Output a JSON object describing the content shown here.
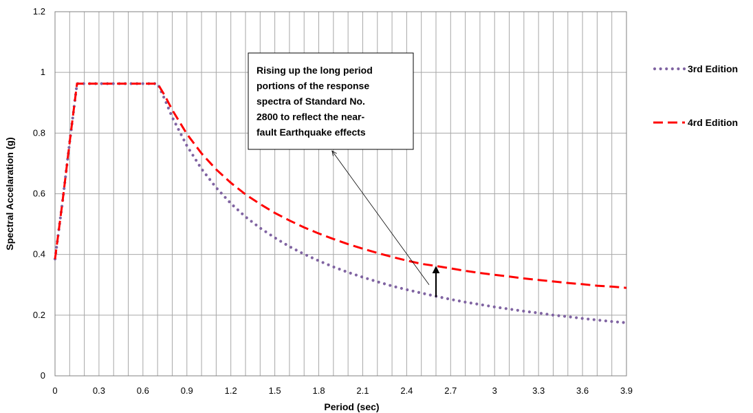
{
  "chart_data": {
    "type": "line",
    "title": "",
    "xlabel": "Period (sec)",
    "ylabel": "Spectral Accelaration (g)",
    "xlim": [
      0,
      3.9
    ],
    "ylim": [
      0,
      1.2
    ],
    "grid": true,
    "legend_position": "right",
    "x_ticks": [
      "0",
      "0.3",
      "0.6",
      "0.9",
      "1.2",
      "1.5",
      "1.8",
      "2.1",
      "2.4",
      "2.7",
      "3",
      "3.3",
      "3.6",
      "3.9"
    ],
    "y_ticks": [
      "0",
      "0.2",
      "0.4",
      "0.6",
      "0.8",
      "1",
      "1.2"
    ],
    "series": [
      {
        "name": "3rd Edition",
        "style": "dotted",
        "color": "#8064a2",
        "points": [
          [
            0,
            0.385
          ],
          [
            0.05,
            0.57
          ],
          [
            0.1,
            0.77
          ],
          [
            0.15,
            0.963
          ],
          [
            0.2,
            0.963
          ],
          [
            0.3,
            0.963
          ],
          [
            0.4,
            0.963
          ],
          [
            0.5,
            0.963
          ],
          [
            0.6,
            0.963
          ],
          [
            0.7,
            0.963
          ],
          [
            0.75,
            0.91
          ],
          [
            0.8,
            0.852
          ],
          [
            0.9,
            0.758
          ],
          [
            1.0,
            0.682
          ],
          [
            1.1,
            0.62
          ],
          [
            1.2,
            0.568
          ],
          [
            1.3,
            0.524
          ],
          [
            1.4,
            0.487
          ],
          [
            1.5,
            0.455
          ],
          [
            1.6,
            0.426
          ],
          [
            1.7,
            0.401
          ],
          [
            1.8,
            0.379
          ],
          [
            1.9,
            0.359
          ],
          [
            2.0,
            0.341
          ],
          [
            2.1,
            0.325
          ],
          [
            2.2,
            0.31
          ],
          [
            2.3,
            0.296
          ],
          [
            2.4,
            0.284
          ],
          [
            2.5,
            0.273
          ],
          [
            2.6,
            0.262
          ],
          [
            2.7,
            0.252
          ],
          [
            2.8,
            0.243
          ],
          [
            2.9,
            0.235
          ],
          [
            3.0,
            0.227
          ],
          [
            3.1,
            0.22
          ],
          [
            3.2,
            0.213
          ],
          [
            3.3,
            0.207
          ],
          [
            3.4,
            0.2
          ],
          [
            3.5,
            0.195
          ],
          [
            3.6,
            0.189
          ],
          [
            3.7,
            0.184
          ],
          [
            3.8,
            0.179
          ],
          [
            3.9,
            0.175
          ]
        ]
      },
      {
        "name": "4rd Edition",
        "style": "dashed",
        "color": "#ff0000",
        "points": [
          [
            0,
            0.385
          ],
          [
            0.05,
            0.57
          ],
          [
            0.1,
            0.77
          ],
          [
            0.15,
            0.963
          ],
          [
            0.2,
            0.963
          ],
          [
            0.3,
            0.963
          ],
          [
            0.4,
            0.963
          ],
          [
            0.5,
            0.963
          ],
          [
            0.6,
            0.963
          ],
          [
            0.7,
            0.963
          ],
          [
            0.75,
            0.923
          ],
          [
            0.8,
            0.876
          ],
          [
            0.9,
            0.797
          ],
          [
            1.0,
            0.733
          ],
          [
            1.1,
            0.68
          ],
          [
            1.2,
            0.636
          ],
          [
            1.3,
            0.598
          ],
          [
            1.4,
            0.566
          ],
          [
            1.5,
            0.537
          ],
          [
            1.6,
            0.512
          ],
          [
            1.7,
            0.489
          ],
          [
            1.8,
            0.469
          ],
          [
            1.9,
            0.451
          ],
          [
            2.0,
            0.434
          ],
          [
            2.1,
            0.419
          ],
          [
            2.2,
            0.405
          ],
          [
            2.3,
            0.392
          ],
          [
            2.4,
            0.38
          ],
          [
            2.5,
            0.369
          ],
          [
            2.6,
            0.362
          ],
          [
            2.7,
            0.354
          ],
          [
            2.8,
            0.346
          ],
          [
            2.9,
            0.339
          ],
          [
            3.0,
            0.333
          ],
          [
            3.1,
            0.327
          ],
          [
            3.2,
            0.321
          ],
          [
            3.3,
            0.316
          ],
          [
            3.4,
            0.311
          ],
          [
            3.5,
            0.306
          ],
          [
            3.6,
            0.302
          ],
          [
            3.7,
            0.297
          ],
          [
            3.8,
            0.294
          ],
          [
            3.9,
            0.29
          ]
        ]
      }
    ],
    "annotation": {
      "text_lines": [
        "Rising up the long period",
        "portions of the response",
        "spectra of Standard No.",
        "2800 to reflect the near-",
        "fault Earthquake effects"
      ],
      "vertical_arrow": {
        "x": 2.6,
        "y_from": 0.262,
        "y_to": 0.362
      },
      "leader_target": {
        "x": 2.6,
        "y": 0.3
      },
      "leader_tail": {
        "x": 1.9,
        "y": 0.755
      }
    }
  }
}
